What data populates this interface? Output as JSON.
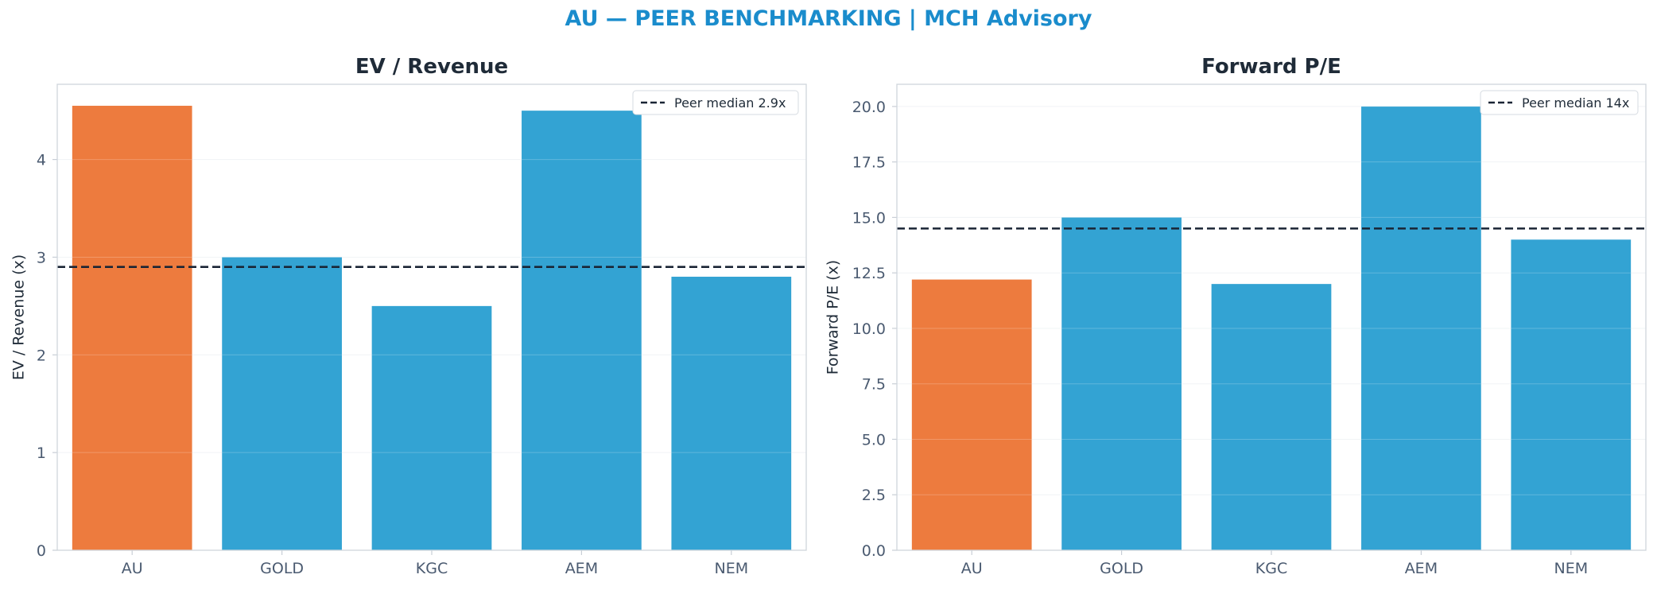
{
  "figure": {
    "title": "AU — PEER BENCHMARKING | MCH Advisory"
  },
  "colors": {
    "highlight": "#ED7B3E",
    "peer": "#33A3D3",
    "median_line": "#1a2535",
    "axis_text": "#4a5a70",
    "title_text": "#1f2b38",
    "suptitle": "#1a8ccc"
  },
  "chart_data": [
    {
      "type": "bar",
      "title": "EV / Revenue",
      "xlabel": "",
      "ylabel": "EV / Revenue (x)",
      "categories": [
        "AU",
        "GOLD",
        "KGC",
        "AEM",
        "NEM"
      ],
      "values": [
        4.55,
        3.0,
        2.5,
        4.5,
        2.8
      ],
      "highlight_category": "AU",
      "ylim": [
        0,
        4.77
      ],
      "yticks": [
        0,
        1,
        2,
        3,
        4
      ],
      "ytick_labels": [
        "0",
        "1",
        "2",
        "3",
        "4"
      ],
      "grid": "horizontal",
      "reference_line": {
        "value": 2.9,
        "label": "Peer median 2.9x",
        "style": "dashed"
      },
      "legend": "top-right"
    },
    {
      "type": "bar",
      "title": "Forward P/E",
      "xlabel": "",
      "ylabel": "Forward P/E (x)",
      "categories": [
        "AU",
        "GOLD",
        "KGC",
        "AEM",
        "NEM"
      ],
      "values": [
        12.2,
        15.0,
        12.0,
        20.0,
        14.0
      ],
      "highlight_category": "AU",
      "ylim": [
        0,
        21.0
      ],
      "yticks": [
        0,
        2.5,
        5,
        7.5,
        10,
        12.5,
        15,
        17.5,
        20
      ],
      "ytick_labels": [
        "0.0",
        "2.5",
        "5.0",
        "7.5",
        "10.0",
        "12.5",
        "15.0",
        "17.5",
        "20.0"
      ],
      "grid": "horizontal",
      "reference_line": {
        "value": 14.5,
        "label": "Peer median 14x",
        "style": "dashed"
      },
      "legend": "top-right"
    }
  ]
}
